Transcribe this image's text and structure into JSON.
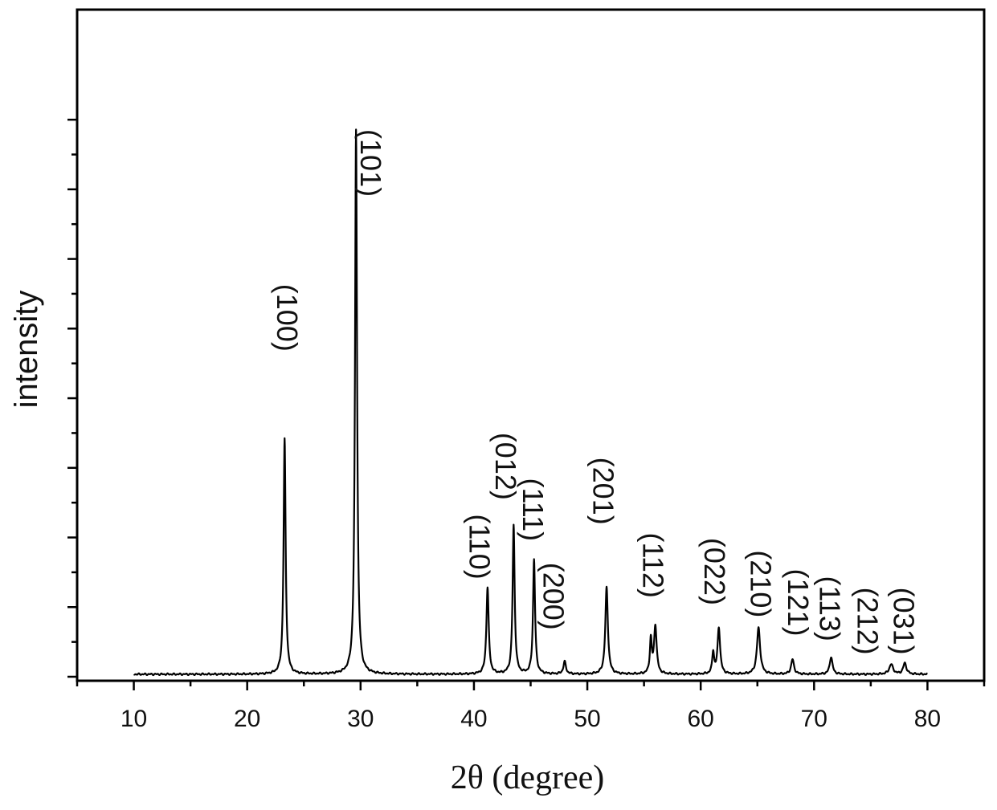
{
  "chart_data": {
    "type": "line",
    "title": "",
    "xlabel": "2θ (degree)",
    "ylabel": "intensity",
    "xlim": [
      5,
      85
    ],
    "ylim": [
      0,
      100
    ],
    "x_ticks": [
      10,
      20,
      30,
      40,
      50,
      60,
      70,
      80
    ],
    "y_tick_labels_shown": false,
    "grid": false,
    "legend": "none",
    "baseline": 0.4,
    "series": [
      {
        "peaks": [
          {
            "x": 23.3,
            "y": 38.0,
            "w": 0.16
          },
          {
            "x": 29.6,
            "y": 88.0,
            "w": 0.16
          },
          {
            "x": 41.2,
            "y": 14.0,
            "w": 0.18
          },
          {
            "x": 43.5,
            "y": 24.0,
            "w": 0.16
          },
          {
            "x": 45.3,
            "y": 18.5,
            "w": 0.16
          },
          {
            "x": 48.0,
            "y": 2.0,
            "w": 0.2
          },
          {
            "x": 51.7,
            "y": 14.0,
            "w": 0.2
          },
          {
            "x": 55.6,
            "y": 5.5,
            "w": 0.15
          },
          {
            "x": 56.0,
            "y": 7.8,
            "w": 0.2
          },
          {
            "x": 61.1,
            "y": 3.5,
            "w": 0.15
          },
          {
            "x": 61.6,
            "y": 7.5,
            "w": 0.2
          },
          {
            "x": 65.1,
            "y": 7.5,
            "w": 0.25
          },
          {
            "x": 68.1,
            "y": 2.4,
            "w": 0.22
          },
          {
            "x": 71.5,
            "y": 2.8,
            "w": 0.22
          },
          {
            "x": 76.8,
            "y": 1.6,
            "w": 0.3
          },
          {
            "x": 78.0,
            "y": 1.8,
            "w": 0.25
          }
        ]
      }
    ],
    "annotations": [
      {
        "text": "(100)",
        "x": 23.3,
        "y": 58
      },
      {
        "text": "(101)",
        "x": 30.7,
        "y": 83
      },
      {
        "text": "(110)",
        "x": 40.3,
        "y": 21
      },
      {
        "text": "(012)",
        "x": 42.6,
        "y": 34
      },
      {
        "text": "(111)",
        "x": 45.0,
        "y": 27
      },
      {
        "text": "(200)",
        "x": 46.8,
        "y": 13
      },
      {
        "text": "(201)",
        "x": 51.2,
        "y": 30
      },
      {
        "text": "(112)",
        "x": 55.6,
        "y": 18
      },
      {
        "text": "(022)",
        "x": 61.0,
        "y": 17
      },
      {
        "text": "(210)",
        "x": 65.1,
        "y": 15
      },
      {
        "text": "(121)",
        "x": 68.4,
        "y": 12
      },
      {
        "text": "(113)",
        "x": 71.2,
        "y": 11
      },
      {
        "text": "(212)",
        "x": 74.5,
        "y": 9
      },
      {
        "text": "(031)",
        "x": 77.7,
        "y": 9
      }
    ]
  }
}
